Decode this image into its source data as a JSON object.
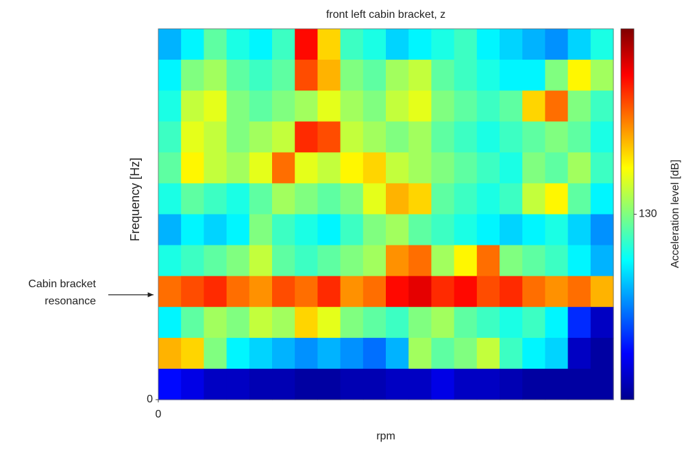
{
  "chart_data": {
    "type": "heatmap",
    "title": "front left cabin bracket, z",
    "xlabel": "rpm",
    "ylabel": "Frequency [Hz]",
    "colorbar_label": "Acceleration level [dB]",
    "annotation": [
      "Cabin bracket",
      "resonance"
    ],
    "colormap": "jet",
    "xlim": [
      0,
      20
    ],
    "ylim": [
      0,
      12
    ],
    "xticks": [
      0
    ],
    "yticks": [
      0
    ],
    "clim": [
      100,
      160
    ],
    "cticks": [
      130
    ],
    "z": [
      [
        118,
        122,
        128,
        124,
        122,
        126,
        152,
        140,
        126,
        124,
        120,
        122,
        124,
        126,
        122,
        120,
        118,
        116,
        120,
        124
      ],
      [
        122,
        130,
        132,
        128,
        126,
        128,
        148,
        142,
        130,
        128,
        132,
        134,
        128,
        126,
        124,
        122,
        122,
        130,
        138,
        132
      ],
      [
        124,
        134,
        136,
        130,
        128,
        130,
        132,
        136,
        132,
        130,
        134,
        136,
        130,
        128,
        126,
        128,
        140,
        146,
        130,
        126
      ],
      [
        126,
        136,
        134,
        130,
        132,
        134,
        150,
        148,
        134,
        132,
        130,
        132,
        128,
        126,
        124,
        126,
        128,
        130,
        128,
        124
      ],
      [
        128,
        138,
        134,
        132,
        136,
        146,
        136,
        134,
        138,
        140,
        134,
        132,
        130,
        128,
        126,
        124,
        130,
        128,
        132,
        126
      ],
      [
        124,
        128,
        126,
        124,
        128,
        132,
        130,
        128,
        130,
        136,
        142,
        140,
        128,
        126,
        124,
        126,
        134,
        138,
        128,
        122
      ],
      [
        118,
        122,
        120,
        122,
        130,
        126,
        124,
        122,
        126,
        130,
        132,
        128,
        126,
        124,
        122,
        120,
        122,
        124,
        120,
        116
      ],
      [
        124,
        126,
        128,
        130,
        134,
        128,
        126,
        128,
        130,
        132,
        144,
        146,
        132,
        138,
        146,
        130,
        128,
        126,
        122,
        118
      ],
      [
        146,
        148,
        150,
        146,
        144,
        148,
        146,
        150,
        144,
        146,
        152,
        154,
        150,
        152,
        148,
        150,
        146,
        144,
        146,
        142
      ],
      [
        122,
        128,
        132,
        130,
        134,
        132,
        140,
        136,
        130,
        128,
        126,
        130,
        132,
        128,
        126,
        124,
        126,
        122,
        110,
        104
      ],
      [
        142,
        140,
        130,
        122,
        120,
        118,
        116,
        118,
        116,
        114,
        118,
        132,
        128,
        130,
        134,
        126,
        122,
        120,
        104,
        102
      ],
      [
        108,
        106,
        104,
        104,
        103,
        103,
        102,
        102,
        103,
        103,
        104,
        104,
        106,
        104,
        104,
        103,
        102,
        102,
        102,
        102
      ]
    ]
  }
}
